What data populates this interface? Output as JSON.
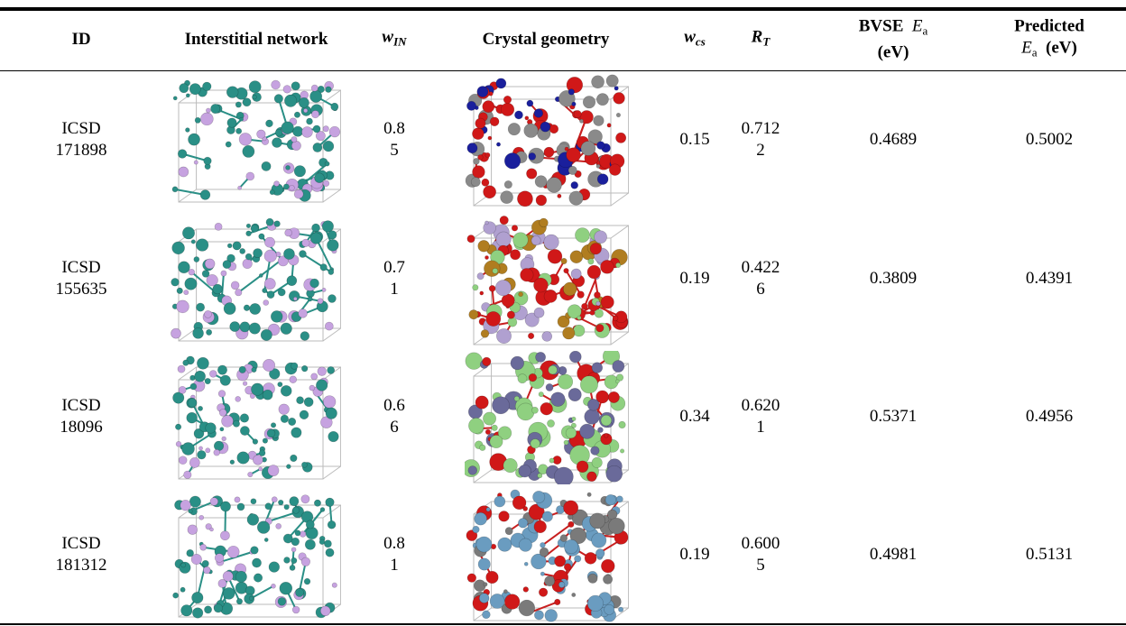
{
  "header": {
    "id": "ID",
    "network": "Interstitial network",
    "w_in": {
      "base": "w",
      "sub": "IN"
    },
    "geometry": "Crystal geometry",
    "w_cs": {
      "base": "w",
      "sub": "cs"
    },
    "r_t": {
      "base": "R",
      "sub": "T"
    },
    "bvse": {
      "prefix": "BVSE",
      "base": "E",
      "sub": "a",
      "unit": "(eV)"
    },
    "predicted": {
      "prefix": "Predicted",
      "base": "E",
      "sub": "a",
      "unit": "(eV)"
    }
  },
  "rows": [
    {
      "id": "ICSD 171898",
      "w_in": "0.85",
      "w_cs": "0.15",
      "r_t": "0.7122",
      "bvse": "0.4689",
      "predicted": "0.5002"
    },
    {
      "id": "ICSD 155635",
      "w_in": "0.71",
      "w_cs": "0.19",
      "r_t": "0.4226",
      "bvse": "0.3809",
      "predicted": "0.4391"
    },
    {
      "id": "ICSD 18096",
      "w_in": "0.66",
      "w_cs": "0.34",
      "r_t": "0.6201",
      "bvse": "0.5371",
      "predicted": "0.4956"
    },
    {
      "id": "ICSD 181312",
      "w_in": "0.81",
      "w_cs": "0.19",
      "r_t": "0.6005",
      "bvse": "0.4981",
      "predicted": "0.5131"
    }
  ]
}
